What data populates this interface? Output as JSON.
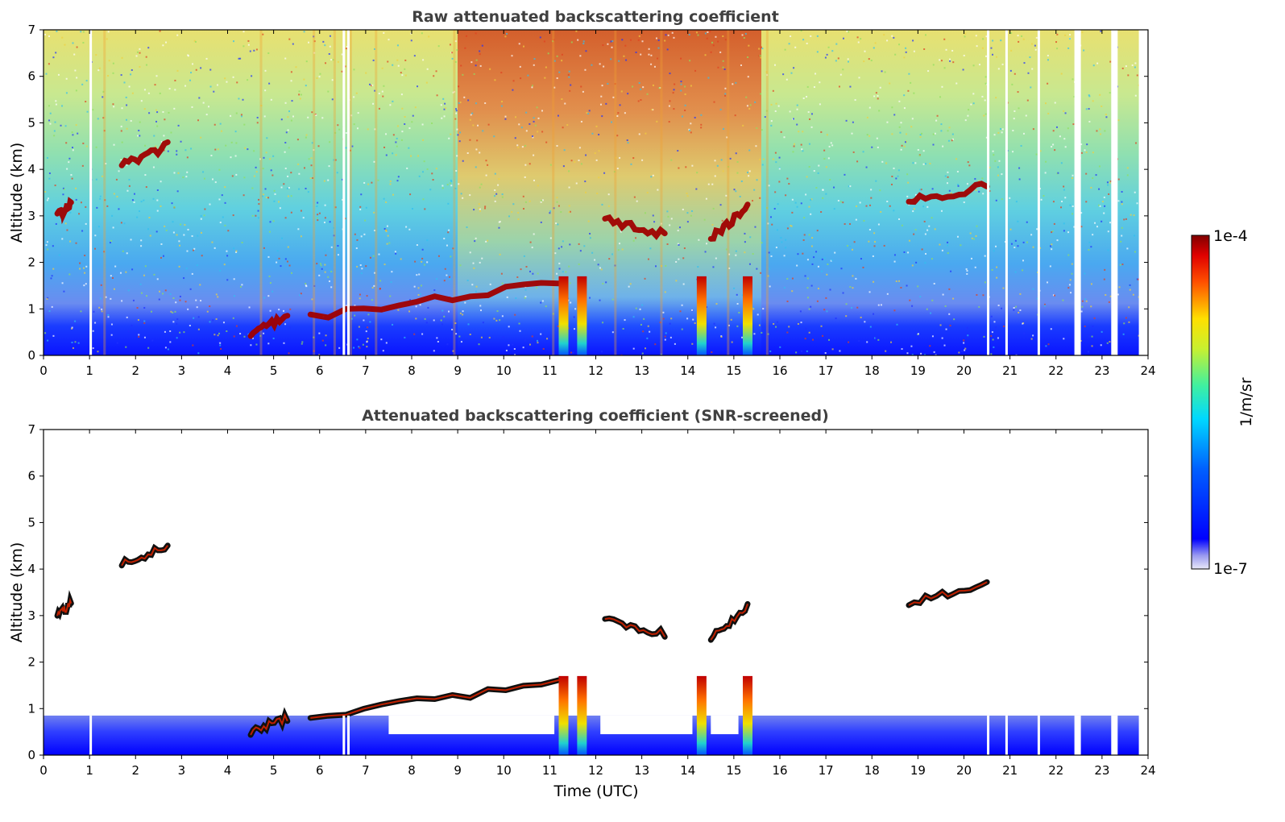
{
  "chart_data": [
    {
      "type": "heatmap",
      "title": "Raw attenuated backscattering coefficient",
      "xlabel": "",
      "ylabel": "Altitude (km)",
      "xlim": [
        0,
        24
      ],
      "ylim": [
        0,
        7
      ],
      "xticks": [
        "0",
        "1",
        "2",
        "3",
        "4",
        "5",
        "6",
        "7",
        "8",
        "9",
        "10",
        "11",
        "12",
        "13",
        "14",
        "15",
        "16",
        "17",
        "18",
        "19",
        "20",
        "21",
        "22",
        "23",
        "24"
      ],
      "yticks": [
        "0",
        "1",
        "2",
        "3",
        "4",
        "5",
        "6",
        "7"
      ],
      "data_end_hour": 23.8,
      "features": {
        "background_gradient": "blue near surface (0-0.8 km) to cyan/green (2-4 km) to yellow/orange (5-7 km)",
        "high_noise_period_hours": [
          9,
          15.5
        ],
        "cloud_layers": [
          {
            "t_start": 0.3,
            "t_end": 0.6,
            "alt_start": 3.0,
            "alt_end": 3.25
          },
          {
            "t_start": 1.7,
            "t_end": 2.7,
            "alt_start": 4.1,
            "alt_end": 4.5
          },
          {
            "t_start": 4.5,
            "t_end": 5.3,
            "alt_start": 0.5,
            "alt_end": 0.8
          },
          {
            "t_start": 5.8,
            "t_end": 11.2,
            "alt_start": 0.8,
            "alt_end": 1.6
          },
          {
            "t_start": 12.2,
            "t_end": 13.5,
            "alt_start": 2.9,
            "alt_end": 2.6
          },
          {
            "t_start": 14.5,
            "t_end": 15.3,
            "alt_start": 2.5,
            "alt_end": 3.2
          },
          {
            "t_start": 18.8,
            "t_end": 20.5,
            "alt_start": 3.3,
            "alt_end": 3.65
          }
        ],
        "precipitation_columns_hours": [
          11.3,
          11.7,
          14.3,
          15.3
        ]
      }
    },
    {
      "type": "heatmap",
      "title": "Attenuated backscattering coefficient (SNR-screened)",
      "xlabel": "Time (UTC)",
      "ylabel": "Altitude (km)",
      "xlim": [
        0,
        24
      ],
      "ylim": [
        0,
        7
      ],
      "xticks": [
        "0",
        "1",
        "2",
        "3",
        "4",
        "5",
        "6",
        "7",
        "8",
        "9",
        "10",
        "11",
        "12",
        "13",
        "14",
        "15",
        "16",
        "17",
        "18",
        "19",
        "20",
        "21",
        "22",
        "23",
        "24"
      ],
      "yticks": [
        "0",
        "1",
        "2",
        "3",
        "4",
        "5",
        "6",
        "7"
      ],
      "data_end_hour": 23.8,
      "features": {
        "background": "white above boundary layer (screened out)",
        "boundary_layer_top_km": 0.85
      }
    }
  ],
  "colorbar": {
    "label": "1/m/sr",
    "max_label": "1e-4",
    "min_label": "1e-7",
    "scale": "log",
    "colormap": "jet"
  }
}
